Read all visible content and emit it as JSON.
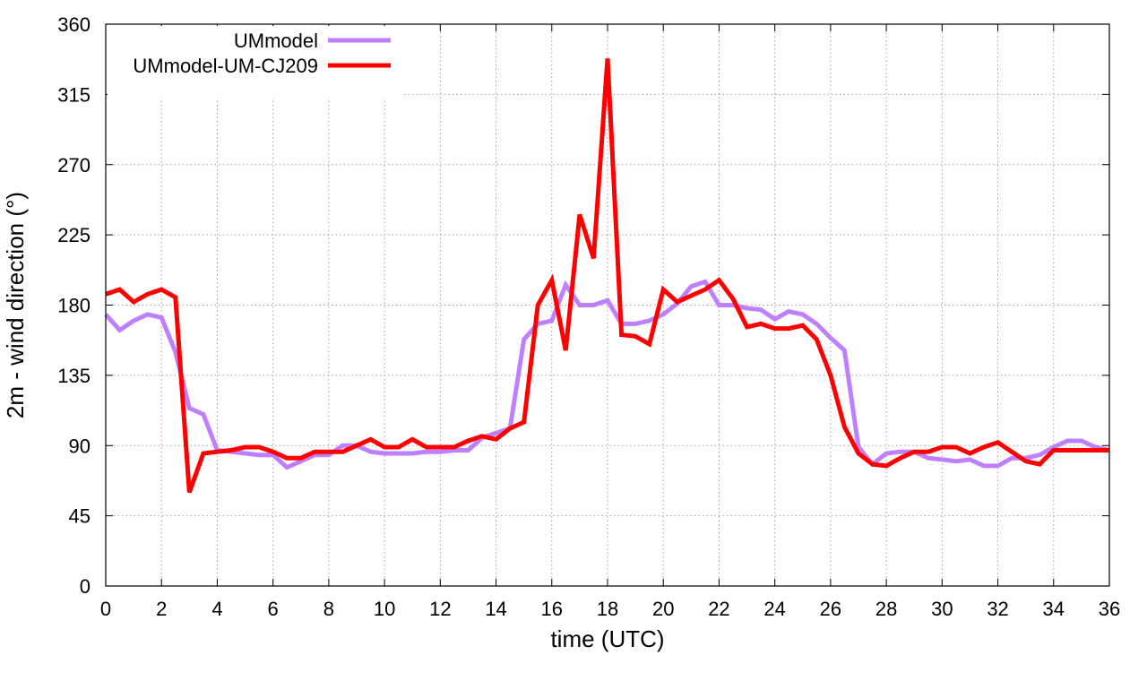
{
  "chart_data": {
    "type": "line",
    "title": "",
    "xlabel": "time (UTC)",
    "ylabel": "2m - wind direction (°)",
    "xlim": [
      0,
      36
    ],
    "ylim": [
      0,
      360
    ],
    "xticks": [
      0,
      2,
      4,
      6,
      8,
      10,
      12,
      14,
      16,
      18,
      20,
      22,
      24,
      26,
      28,
      30,
      32,
      34,
      36
    ],
    "yticks": [
      0,
      45,
      90,
      135,
      180,
      225,
      270,
      315,
      360
    ],
    "grid": true,
    "legend_position": "top-left",
    "series": [
      {
        "name": "UMmodel",
        "color": "#bf80ff",
        "x": [
          0,
          0.5,
          1,
          1.5,
          2,
          2.5,
          3,
          3.5,
          4,
          4.5,
          5,
          5.5,
          6,
          6.5,
          7,
          7.5,
          8,
          8.5,
          9,
          9.5,
          10,
          10.5,
          11,
          11.5,
          12,
          12.5,
          13,
          13.5,
          14,
          14.5,
          15,
          15.5,
          16,
          16.5,
          17,
          17.5,
          18,
          18.5,
          19,
          19.5,
          20,
          20.5,
          21,
          21.5,
          22,
          22.5,
          23,
          23.5,
          24,
          24.5,
          25,
          25.5,
          26,
          26.5,
          27,
          27.5,
          28,
          28.5,
          29,
          29.5,
          30,
          30.5,
          31,
          31.5,
          32,
          32.5,
          33,
          33.5,
          34,
          34.5,
          35,
          35.5,
          36
        ],
        "values": [
          174,
          164,
          170,
          174,
          172,
          150,
          114,
          110,
          87,
          86,
          85,
          84,
          84,
          76,
          80,
          84,
          84,
          90,
          90,
          86,
          85,
          85,
          85,
          86,
          86,
          87,
          87,
          95,
          98,
          101,
          158,
          168,
          170,
          193,
          180,
          180,
          183,
          168,
          168,
          170,
          174,
          181,
          192,
          195,
          180,
          180,
          178,
          177,
          171,
          176,
          174,
          168,
          159,
          151,
          89,
          78,
          85,
          86,
          86,
          82,
          81,
          80,
          81,
          77,
          77,
          82,
          82,
          84,
          89,
          93,
          93,
          89,
          87
        ]
      },
      {
        "name": "UMmodel-UM-CJ209",
        "color": "#ff0000",
        "x": [
          0,
          0.5,
          1,
          1.5,
          2,
          2.5,
          3,
          3.5,
          4,
          4.5,
          5,
          5.5,
          6,
          6.5,
          7,
          7.5,
          8,
          8.5,
          9,
          9.5,
          10,
          10.5,
          11,
          11.5,
          12,
          12.5,
          13,
          13.5,
          14,
          14.5,
          15,
          15.5,
          16,
          16.5,
          17,
          17.5,
          18,
          18.5,
          19,
          19.5,
          20,
          20.5,
          21,
          21.5,
          22,
          22.5,
          23,
          23.5,
          24,
          24.5,
          25,
          25.5,
          26,
          26.5,
          27,
          27.5,
          28,
          28.5,
          29,
          29.5,
          30,
          30.5,
          31,
          31.5,
          32,
          32.5,
          33,
          33.5,
          34,
          34.5,
          35,
          35.5,
          36
        ],
        "values": [
          187,
          190,
          182,
          187,
          190,
          185,
          60,
          85,
          86,
          87,
          89,
          89,
          86,
          82,
          82,
          86,
          86,
          86,
          90,
          94,
          89,
          89,
          94,
          89,
          89,
          89,
          93,
          96,
          94,
          101,
          105,
          180,
          196,
          151,
          238,
          210,
          338,
          161,
          160,
          155,
          190,
          182,
          186,
          190,
          196,
          184,
          166,
          168,
          165,
          165,
          167,
          158,
          135,
          102,
          85,
          78,
          77,
          82,
          86,
          86,
          89,
          89,
          85,
          89,
          92,
          86,
          80,
          78,
          87,
          87,
          87,
          87,
          87
        ]
      }
    ]
  }
}
